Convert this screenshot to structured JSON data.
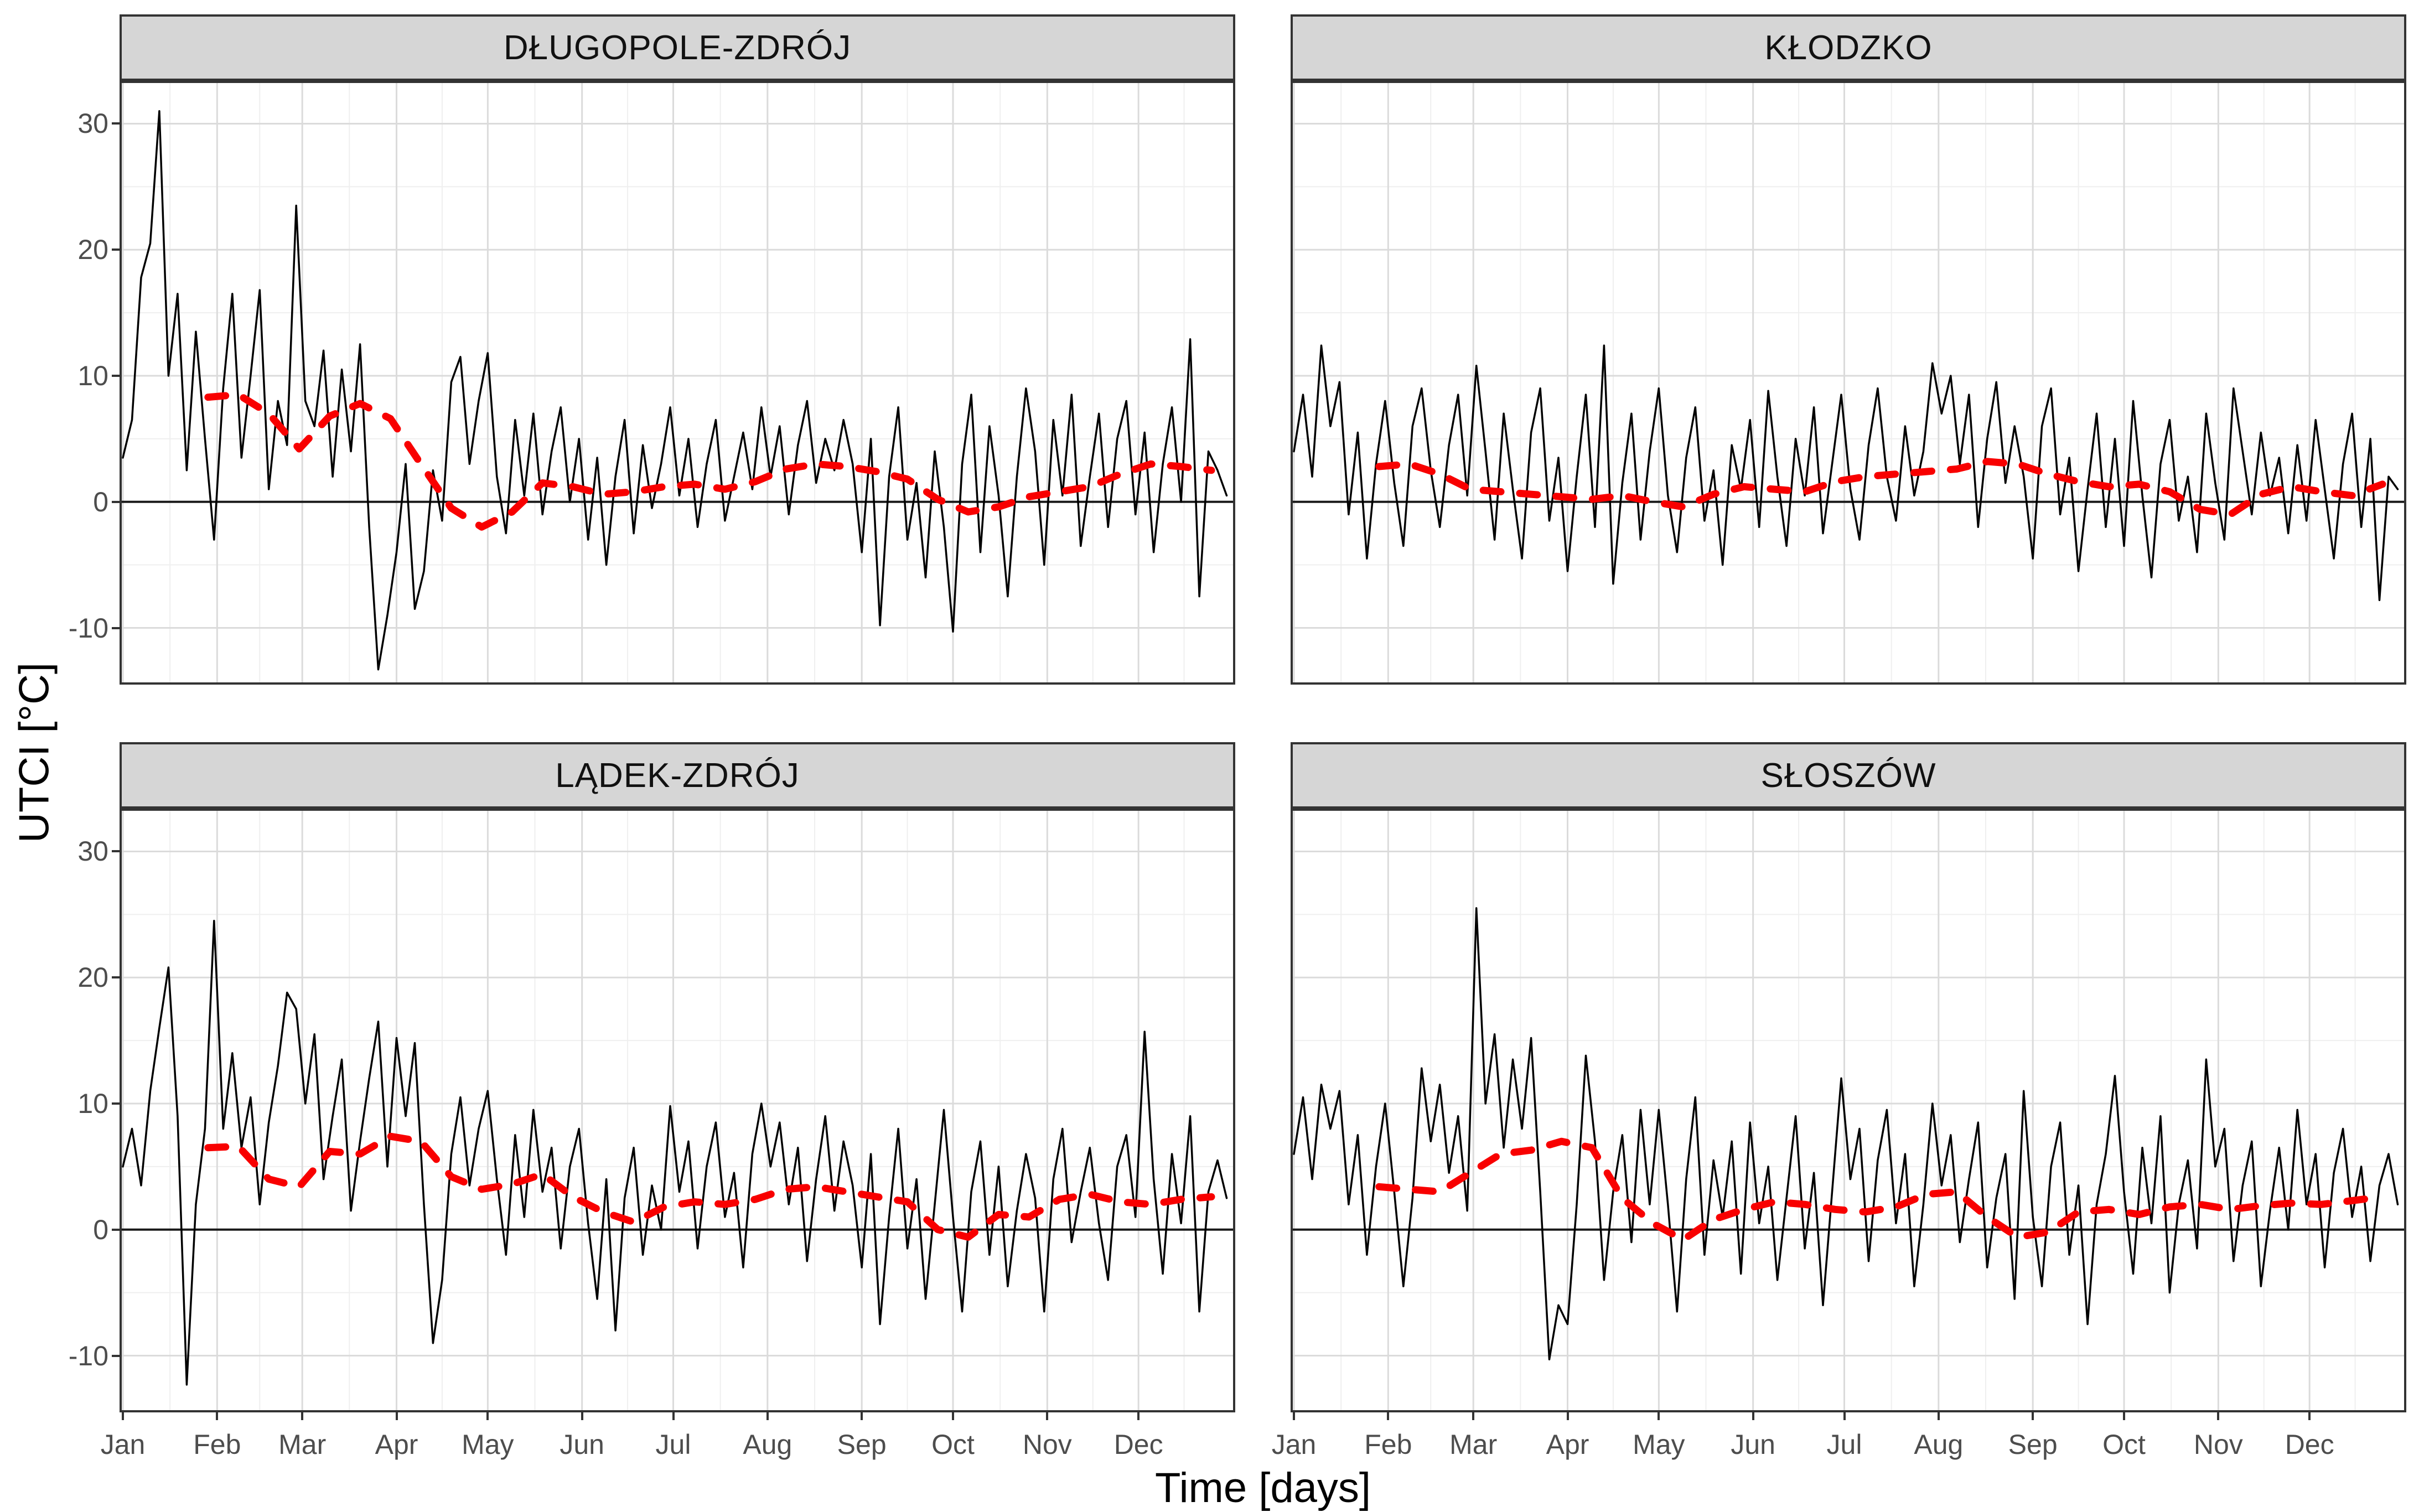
{
  "figure": {
    "type": "faceted daily time-series (ggplot2-style, 2x2 facets)",
    "x_axis_label": "Time [days]",
    "y_axis_label": "UTCI [°C]",
    "facets": [
      "DŁUGOPOLE-ZDRÓJ",
      "KŁODZKO",
      "LĄDEK-ZDRÓJ",
      "SŁOSZÓW"
    ]
  },
  "axes": {
    "ylim": [
      -14.5,
      33.4
    ],
    "y_ticks": [
      30,
      20,
      10,
      0,
      -10
    ],
    "y_minor": [
      25,
      15,
      5,
      -5
    ],
    "x_tick_labels": [
      "Jan",
      "Feb",
      "Mar",
      "Apr",
      "May",
      "Jun",
      "Jul",
      "Aug",
      "Sep",
      "Oct",
      "Nov",
      "Dec"
    ],
    "x_tick_days": [
      1,
      32,
      60,
      91,
      121,
      152,
      182,
      213,
      244,
      274,
      305,
      335
    ],
    "x_minor_days": [
      16.5,
      46,
      75.5,
      106,
      136.5,
      167,
      197.5,
      228.5,
      259,
      289.5,
      320,
      350
    ],
    "x_domain_days": [
      1,
      365
    ],
    "grid": "major and minor, light grey on white",
    "zero_reference_line": 0
  },
  "style": {
    "daily_color": "#000000",
    "smooth_color": "#F80000",
    "smooth_dash": "32 34",
    "strip_bg": "#D6D6D6",
    "panel_border": "#333333",
    "grid_major": "#DBDBDB",
    "grid_minor": "#EFEFEF",
    "zero_line_color": "#1A1A1A",
    "tick_label_color": "#4D4D4D"
  },
  "chart_data": [
    {
      "type": "line",
      "title": "DŁUGOPOLE-ZDRÓJ",
      "series": [
        {
          "name": "daily UTCI",
          "role": "daily",
          "color": "#000000",
          "style": "solid",
          "x_start": 1,
          "x_step": 3,
          "values": [
            3.5,
            6.5,
            17.8,
            20.5,
            31,
            10,
            16.5,
            2.5,
            13.5,
            5,
            -3,
            9,
            16.5,
            3.5,
            10,
            16.8,
            1,
            8,
            4.5,
            23.5,
            8,
            6,
            12,
            2,
            10.5,
            4,
            12.5,
            -2,
            -13.3,
            -9,
            -4,
            3,
            -8.5,
            -5.5,
            2.5,
            -1.5,
            9.5,
            11.5,
            3,
            8,
            11.8,
            2,
            -2.5,
            6.5,
            0.5,
            7,
            -1,
            4,
            7.5,
            0,
            5,
            -3,
            3.5,
            -5,
            2,
            6.5,
            -2.5,
            4.5,
            -0.5,
            3,
            7.5,
            0.5,
            5,
            -2,
            3,
            6.5,
            -1.5,
            2,
            5.5,
            1,
            7.5,
            2,
            6,
            -1,
            4.5,
            8,
            1.5,
            5,
            2.5,
            6.5,
            3,
            -4,
            5,
            -9.8,
            2,
            7.5,
            -3,
            1.5,
            -6,
            4,
            -2,
            -10.3,
            3,
            8.5,
            -4,
            6,
            0.5,
            -7.5,
            2,
            9,
            4,
            -5,
            6.5,
            0.5,
            8.5,
            -3.5,
            2,
            7,
            -2,
            5,
            8,
            -1,
            5.5,
            -4,
            3,
            7.5,
            0,
            12.9,
            -7.5,
            4,
            2.5,
            0.5
          ]
        },
        {
          "name": "smoothed UTCI (red dashed)",
          "role": "smooth",
          "color": "#F80000",
          "style": "dashed",
          "x_start": 29,
          "x_step": 10,
          "values": [
            8.3,
            8.5,
            7,
            4.2,
            6.8,
            7.8,
            6.6,
            3,
            -0.5,
            -2,
            -0.8,
            1.5,
            1.2,
            0.6,
            0.8,
            1.2,
            1.4,
            1,
            1.6,
            2.6,
            3,
            2.8,
            2.4,
            1.8,
            0.2,
            -0.8,
            -0.4,
            0.4,
            0.8,
            1.2,
            2.2,
            3,
            2.8,
            2.5
          ]
        }
      ]
    },
    {
      "type": "line",
      "title": "KŁODZKO",
      "series": [
        {
          "name": "daily UTCI",
          "role": "daily",
          "color": "#000000",
          "style": "solid",
          "x_start": 1,
          "x_step": 3,
          "values": [
            4,
            8.5,
            2,
            12.4,
            6,
            9.5,
            -1,
            5.5,
            -4.5,
            3,
            8,
            1.5,
            -3.5,
            6,
            9,
            2.5,
            -2,
            4.5,
            8.5,
            0.5,
            10.8,
            4,
            -3,
            7,
            1,
            -4.5,
            5.5,
            9,
            -1.5,
            3.5,
            -5.5,
            2,
            8.5,
            -2,
            12.4,
            -6.5,
            1.5,
            7,
            -3,
            4,
            9,
            0.5,
            -4,
            3.5,
            7.5,
            -1.5,
            2.5,
            -5,
            4.5,
            1,
            6.5,
            -2,
            8.8,
            2,
            -3.5,
            5,
            0.5,
            7.5,
            -2.5,
            3,
            8.5,
            1,
            -3,
            4.5,
            9,
            2,
            -1.5,
            6,
            0.5,
            4,
            11,
            7,
            10,
            3,
            8.5,
            -2,
            5,
            9.5,
            1.5,
            6,
            2,
            -4.5,
            6,
            9,
            -1,
            3.5,
            -5.5,
            1,
            7,
            -2,
            5,
            -3.5,
            8,
            0.5,
            -6,
            3,
            6.5,
            -1.5,
            2,
            -4,
            7,
            1.5,
            -3,
            9,
            4,
            -1,
            5.5,
            0.5,
            3.5,
            -2.5,
            4.5,
            -1.5,
            6.5,
            1,
            -4.5,
            3,
            7,
            -2,
            5,
            -7.8,
            2,
            1
          ]
        },
        {
          "name": "smoothed UTCI (red dashed)",
          "role": "smooth",
          "color": "#F80000",
          "style": "dashed",
          "x_start": 29,
          "x_step": 10,
          "values": [
            2.8,
            3,
            2.2,
            1,
            0.8,
            0.6,
            0.4,
            0.2,
            0.5,
            0,
            -0.4,
            0.6,
            1.2,
            1,
            0.8,
            1.6,
            2,
            2.2,
            2.4,
            2.6,
            3.2,
            3,
            2.2,
            1.6,
            1.2,
            1.4,
            0.8,
            -0.6,
            -1,
            0.6,
            1.2,
            0.8,
            0.5,
            1.4
          ]
        }
      ]
    },
    {
      "type": "line",
      "title": "LĄDEK-ZDRÓJ",
      "series": [
        {
          "name": "daily UTCI",
          "role": "daily",
          "color": "#000000",
          "style": "solid",
          "x_start": 1,
          "x_step": 3,
          "values": [
            5,
            8,
            3.5,
            11,
            16,
            20.8,
            9,
            -12.3,
            2,
            8,
            24.5,
            8,
            14,
            6.5,
            10.5,
            2,
            8.5,
            13,
            18.8,
            17.5,
            10,
            15.5,
            4,
            9,
            13.5,
            1.5,
            7,
            12,
            16.5,
            5,
            15.2,
            9,
            14.8,
            2,
            -9,
            -4,
            6,
            10.5,
            3.5,
            8,
            11,
            4,
            -2,
            7.5,
            1,
            9.5,
            3,
            6.5,
            -1.5,
            5,
            8,
            0.5,
            -5.5,
            4,
            -8,
            2.5,
            6.5,
            -2,
            3.5,
            0,
            9.8,
            3,
            7,
            -1.5,
            5,
            8.5,
            1,
            4.5,
            -3,
            6,
            10,
            5,
            8.5,
            2,
            6.5,
            -2.5,
            4,
            9,
            1.5,
            7,
            3.5,
            -3,
            6,
            -7.5,
            1,
            8,
            -1.5,
            4,
            -5.5,
            2,
            9.5,
            1,
            -6.5,
            3,
            7,
            -2,
            5,
            -4.5,
            1.5,
            6,
            2.5,
            -6.5,
            4,
            8,
            -1,
            3,
            6.5,
            0.5,
            -4,
            5,
            7.5,
            1,
            15.7,
            4,
            -3.5,
            6,
            0.5,
            9,
            -6.5,
            3,
            5.5,
            2.5
          ]
        },
        {
          "name": "smoothed UTCI (red dashed)",
          "role": "smooth",
          "color": "#F80000",
          "style": "dashed",
          "x_start": 29,
          "x_step": 10,
          "values": [
            6.5,
            6.6,
            4,
            3.4,
            6.2,
            6,
            7.4,
            7,
            4.2,
            3.2,
            3.6,
            4.4,
            2.6,
            1.4,
            0.6,
            1.8,
            2.2,
            2,
            2.4,
            3.2,
            3.4,
            3,
            2.6,
            2.2,
            0,
            -0.6,
            1.2,
            1,
            2.4,
            2.8,
            2.2,
            2,
            2.4,
            2.6
          ]
        }
      ]
    },
    {
      "type": "line",
      "title": "SŁOSZÓW",
      "series": [
        {
          "name": "daily UTCI",
          "role": "daily",
          "color": "#000000",
          "style": "solid",
          "x_start": 1,
          "x_step": 3,
          "values": [
            6,
            10.5,
            4,
            11.5,
            8,
            11,
            2,
            7.5,
            -2,
            5,
            10,
            3,
            -4.5,
            2.5,
            12.8,
            7,
            11.5,
            4.5,
            9,
            1.5,
            25.5,
            10,
            15.5,
            6.5,
            13.5,
            8,
            15.2,
            3,
            -10.3,
            -6,
            -7.5,
            2,
            13.8,
            7,
            -4,
            3,
            7.5,
            -1,
            9.5,
            2,
            9.5,
            2,
            -6.5,
            4,
            10.5,
            -2,
            5.5,
            1,
            7,
            -3.5,
            8.5,
            0.5,
            5,
            -4,
            2.5,
            9,
            -1.5,
            4.5,
            -6,
            3,
            12,
            4,
            8,
            -2.5,
            5.5,
            9.5,
            0.5,
            6,
            -4.5,
            2,
            10,
            3.5,
            7.5,
            -1,
            4,
            8.5,
            -3,
            2.5,
            6,
            -5.5,
            11,
            1,
            -4.5,
            5,
            8.5,
            -2,
            3.5,
            -7.5,
            2,
            6,
            12.2,
            3,
            -3.5,
            6.5,
            0.5,
            9,
            -5,
            2,
            5.5,
            -1.5,
            13.5,
            5,
            8,
            -2.5,
            3.5,
            7,
            -4.5,
            1.5,
            6.5,
            0,
            9.5,
            2,
            6,
            -3,
            4.5,
            8,
            1,
            5,
            -2.5,
            3.5,
            6,
            2
          ]
        },
        {
          "name": "smoothed UTCI (red dashed)",
          "role": "smooth",
          "color": "#F80000",
          "style": "dashed",
          "x_start": 29,
          "x_step": 10,
          "values": [
            3.4,
            3.2,
            3,
            4.5,
            6,
            6.3,
            7,
            6.5,
            2.5,
            0.5,
            -0.8,
            0.8,
            1.6,
            2.2,
            2,
            1.6,
            1.4,
            1.8,
            2.8,
            3,
            1,
            -0.6,
            -0.2,
            1.4,
            1.6,
            1.2,
            1.8,
            2,
            1.6,
            1.9,
            2.1,
            2,
            2.3,
            2.6
          ]
        }
      ]
    }
  ]
}
